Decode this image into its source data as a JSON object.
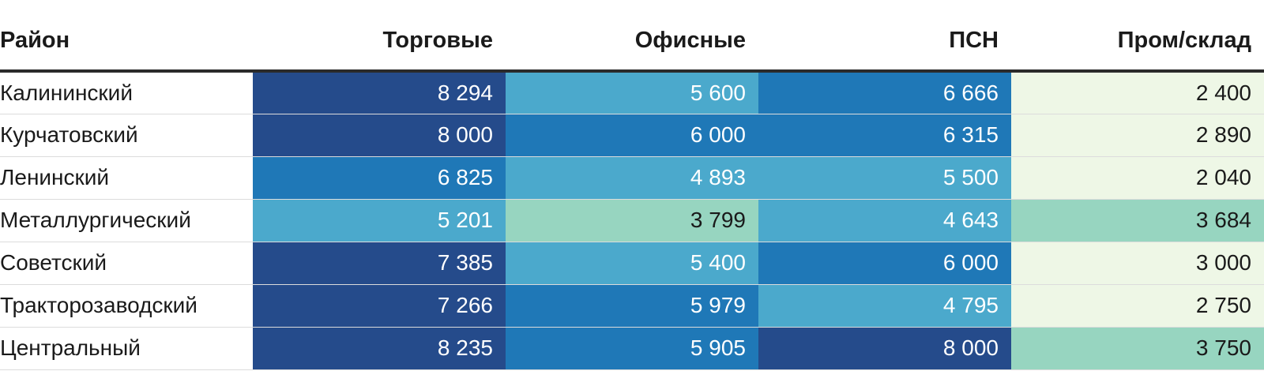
{
  "chart_data": {
    "type": "table",
    "columns": [
      "Район",
      "Торговые",
      "Офисные",
      "ПСН",
      "Пром/склад"
    ],
    "rows": [
      {
        "district": "Калининский",
        "values": [
          8294,
          5600,
          6666,
          2400
        ],
        "labels": [
          "8 294",
          "5 600",
          "6 666",
          "2 400"
        ]
      },
      {
        "district": "Курчатовский",
        "values": [
          8000,
          6000,
          6315,
          2890
        ],
        "labels": [
          "8 000",
          "6 000",
          "6 315",
          "2 890"
        ]
      },
      {
        "district": "Ленинский",
        "values": [
          6825,
          4893,
          5500,
          2040
        ],
        "labels": [
          "6 825",
          "4 893",
          "5 500",
          "2 040"
        ]
      },
      {
        "district": "Металлургический",
        "values": [
          5201,
          3799,
          4643,
          3684
        ],
        "labels": [
          "5 201",
          "3 799",
          "4 643",
          "3 684"
        ]
      },
      {
        "district": "Советский",
        "values": [
          7385,
          5400,
          6000,
          3000
        ],
        "labels": [
          "7 385",
          "5 400",
          "6 000",
          "3 000"
        ]
      },
      {
        "district": "Тракторозаводский",
        "values": [
          7266,
          5979,
          4795,
          2750
        ],
        "labels": [
          "7 266",
          "5 979",
          "4 795",
          "2 750"
        ]
      },
      {
        "district": "Центральный",
        "values": [
          8235,
          5905,
          8000,
          3750
        ],
        "labels": [
          "8 235",
          "5 905",
          "8 000",
          "3 750"
        ]
      }
    ],
    "cell_colors": [
      [
        "#254b8b",
        "#4ba9cc",
        "#1f78b7",
        "#eef7e6"
      ],
      [
        "#254b8b",
        "#1f78b7",
        "#1f78b7",
        "#eef7e6"
      ],
      [
        "#1f78b7",
        "#4ba9cc",
        "#4ba9cc",
        "#eef7e6"
      ],
      [
        "#4ba9cc",
        "#97d5c0",
        "#4ba9cc",
        "#97d5c0"
      ],
      [
        "#254b8b",
        "#4ba9cc",
        "#1f78b7",
        "#eef7e6"
      ],
      [
        "#254b8b",
        "#1f78b7",
        "#4ba9cc",
        "#eef7e6"
      ],
      [
        "#254b8b",
        "#1f78b7",
        "#254b8b",
        "#97d5c0"
      ]
    ],
    "light_backgrounds": [
      "#eef7e6",
      "#97d5c0"
    ]
  }
}
